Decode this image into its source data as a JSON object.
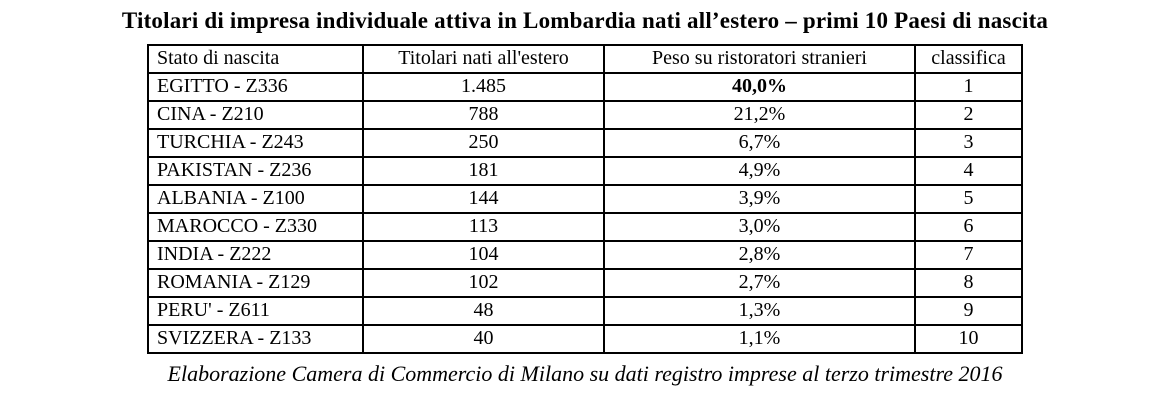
{
  "title": "Titolari di impresa individuale attiva in Lombardia nati all’estero – primi 10 Paesi di nascita",
  "table": {
    "columns": [
      {
        "id": "stato",
        "label": "Stato di nascita",
        "bold": false,
        "align": "left"
      },
      {
        "id": "titolari",
        "label": "Titolari nati all'estero",
        "bold": true,
        "align": "center"
      },
      {
        "id": "peso",
        "label": "Peso su ristoratori stranieri",
        "bold": true,
        "align": "center"
      },
      {
        "id": "classifica",
        "label": "classifica",
        "bold": true,
        "align": "center"
      }
    ],
    "rows": [
      {
        "stato": "EGITTO - Z336",
        "titolari": "1.485",
        "peso": "40,0%",
        "classifica": "1",
        "peso_bold": true
      },
      {
        "stato": "CINA - Z210",
        "titolari": "788",
        "peso": "21,2%",
        "classifica": "2",
        "peso_bold": false
      },
      {
        "stato": "TURCHIA - Z243",
        "titolari": "250",
        "peso": "6,7%",
        "classifica": "3",
        "peso_bold": false
      },
      {
        "stato": "PAKISTAN - Z236",
        "titolari": "181",
        "peso": "4,9%",
        "classifica": "4",
        "peso_bold": false
      },
      {
        "stato": "ALBANIA - Z100",
        "titolari": "144",
        "peso": "3,9%",
        "classifica": "5",
        "peso_bold": false
      },
      {
        "stato": "MAROCCO - Z330",
        "titolari": "113",
        "peso": "3,0%",
        "classifica": "6",
        "peso_bold": false
      },
      {
        "stato": "INDIA - Z222",
        "titolari": "104",
        "peso": "2,8%",
        "classifica": "7",
        "peso_bold": false
      },
      {
        "stato": "ROMANIA - Z129",
        "titolari": "102",
        "peso": "2,7%",
        "classifica": "8",
        "peso_bold": false
      },
      {
        "stato": "PERU' - Z611",
        "titolari": "48",
        "peso": "1,3%",
        "classifica": "9",
        "peso_bold": false
      },
      {
        "stato": "SVIZZERA - Z133",
        "titolari": "40",
        "peso": "1,1%",
        "classifica": "10",
        "peso_bold": false
      }
    ]
  },
  "footer": "Elaborazione Camera di Commercio di Milano su dati registro imprese al terzo trimestre 2016",
  "colors": {
    "text": "#000000",
    "border": "#000000",
    "background": "#ffffff"
  }
}
